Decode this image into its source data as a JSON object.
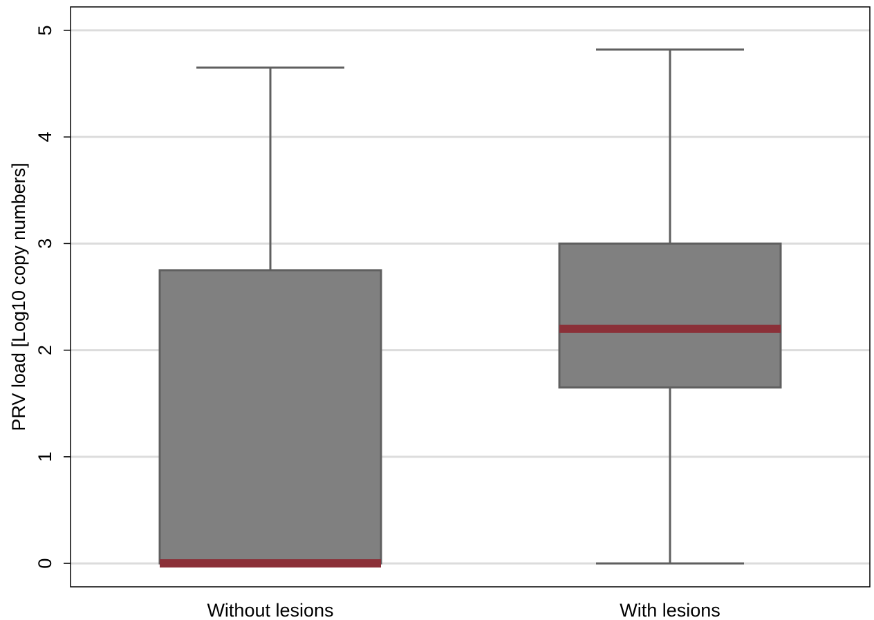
{
  "chart_data": {
    "type": "box",
    "ylabel": "PRV load [Log10 copy numbers]",
    "xlabel": "",
    "ylim": [
      -0.22,
      5.22
    ],
    "yticks": [
      0,
      1,
      2,
      3,
      4,
      5
    ],
    "grid": true,
    "categories": [
      "Without lesions",
      "With lesions"
    ],
    "boxes": [
      {
        "category": "Without lesions",
        "whisker_low": 0,
        "q1": 0,
        "median": 0,
        "q3": 2.75,
        "whisker_high": 4.65
      },
      {
        "category": "With lesions",
        "whisker_low": 0,
        "q1": 1.65,
        "median": 2.2,
        "q3": 3.0,
        "whisker_high": 4.82
      }
    ],
    "colors": {
      "box_fill": "#808080",
      "box_stroke": "#5f5f5f",
      "median": "#8b3038",
      "grid": "#dcdcdc",
      "frame": "#000000"
    }
  }
}
